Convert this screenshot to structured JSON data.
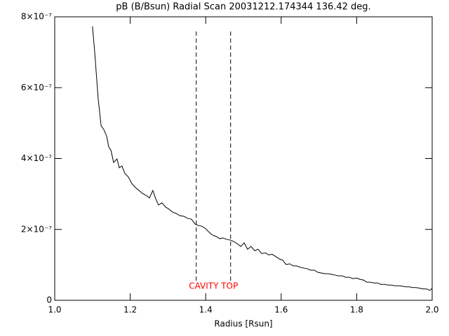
{
  "chart_data": {
    "type": "line",
    "title": "pB (B/Bsun) Radial Scan 20031212.174344 136.42 deg.",
    "x_label": "Radius [Rsun]",
    "xlim": [
      1,
      2
    ],
    "xticks": [
      {
        "value": 1,
        "label": "1.0"
      },
      1.2,
      1.4,
      1.6,
      1.8,
      {
        "value": 2,
        "label": "2.0"
      }
    ],
    "ylim": [
      0,
      8e-07
    ],
    "yticks": [
      0,
      {
        "value": 2e-07,
        "label": "2×10⁻⁷"
      },
      {
        "value": 4e-07,
        "label": "4×10⁻⁷"
      },
      {
        "value": 6e-07,
        "label": "6×10⁻⁷"
      },
      {
        "value": 8e-07,
        "label": "8×10⁻⁷"
      }
    ],
    "vlines": [
      1.375,
      1.466
    ],
    "vline_color": "#000000",
    "annotation": {
      "text": "CAVITY TOP",
      "color": "#ff0000"
    },
    "series": [
      {
        "color": "#000000",
        "x": [
          1.1,
          1.106,
          1.115,
          1.123,
          1.13,
          1.138,
          1.143,
          1.149,
          1.156,
          1.165,
          1.171,
          1.178,
          1.186,
          1.195,
          1.204,
          1.214,
          1.223,
          1.232,
          1.242,
          1.251,
          1.26,
          1.268,
          1.275,
          1.284,
          1.294,
          1.303,
          1.312,
          1.322,
          1.331,
          1.342,
          1.353,
          1.362,
          1.372,
          1.381,
          1.39,
          1.4,
          1.409,
          1.418,
          1.428,
          1.437,
          1.446,
          1.455,
          1.465,
          1.474,
          1.483,
          1.493,
          1.502,
          1.511,
          1.52,
          1.53,
          1.539,
          1.548,
          1.558,
          1.567,
          1.576,
          1.586,
          1.595,
          1.604,
          1.613,
          1.623,
          1.632,
          1.641,
          1.651,
          1.66,
          1.669,
          1.678,
          1.688,
          1.697,
          1.706,
          1.716,
          1.725,
          1.734,
          1.743,
          1.753,
          1.762,
          1.771,
          1.781,
          1.79,
          1.799,
          1.809,
          1.818,
          1.827,
          1.836,
          1.846,
          1.855,
          1.864,
          1.874,
          1.883,
          1.892,
          1.901,
          1.911,
          1.92,
          1.929,
          1.939,
          1.948,
          1.957,
          1.967,
          1.976,
          1.985,
          1.994,
          2.0
        ],
        "values": [
          7.73e-07,
          7e-07,
          5.7e-07,
          4.92e-07,
          4.82e-07,
          4.62e-07,
          4.33e-07,
          4.23e-07,
          3.89e-07,
          3.99e-07,
          3.74e-07,
          3.79e-07,
          3.58e-07,
          3.48e-07,
          3.3e-07,
          3.18e-07,
          3.1e-07,
          3.02e-07,
          2.96e-07,
          2.89e-07,
          3.1e-07,
          2.85e-07,
          2.69e-07,
          2.75e-07,
          2.63e-07,
          2.57e-07,
          2.49e-07,
          2.45e-07,
          2.39e-07,
          2.37e-07,
          2.31e-07,
          2.29e-07,
          2.15e-07,
          2.11e-07,
          2.09e-07,
          2.02e-07,
          1.92e-07,
          1.84e-07,
          1.8e-07,
          1.74e-07,
          1.76e-07,
          1.72e-07,
          1.7e-07,
          1.66e-07,
          1.6e-07,
          1.52e-07,
          1.62e-07,
          1.44e-07,
          1.52e-07,
          1.4e-07,
          1.44e-07,
          1.32e-07,
          1.34e-07,
          1.28e-07,
          1.3e-07,
          1.23e-07,
          1.17e-07,
          1.13e-07,
          1.01e-07,
          1.03e-07,
          9.7e-08,
          9.7e-08,
          9.3e-08,
          9.1e-08,
          8.9e-08,
          8.5e-08,
          8.5e-08,
          7.9e-08,
          7.7e-08,
          7.5e-08,
          7.5e-08,
          7.3e-08,
          7.1e-08,
          6.9e-08,
          6.9e-08,
          6.5e-08,
          6.5e-08,
          6.1e-08,
          6.3e-08,
          5.9e-08,
          5.7e-08,
          5.1e-08,
          5.1e-08,
          4.9e-08,
          4.9e-08,
          4.5e-08,
          4.5e-08,
          4.3e-08,
          4.3e-08,
          4.1e-08,
          4.1e-08,
          4e-08,
          3.8e-08,
          3.8e-08,
          3.6e-08,
          3.6e-08,
          3.4e-08,
          3.2e-08,
          3.2e-08,
          2.8e-08,
          3.4e-08
        ]
      }
    ]
  }
}
